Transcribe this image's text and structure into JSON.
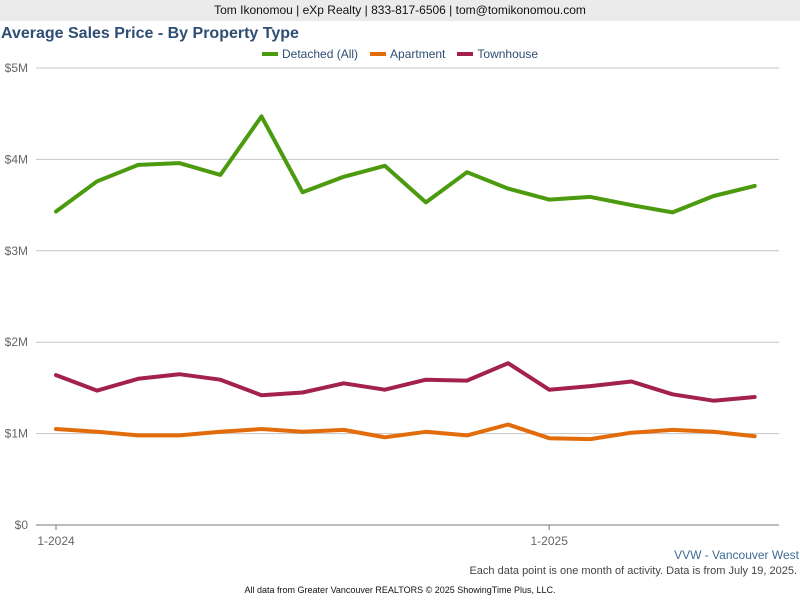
{
  "header": {
    "agent_name": "Tom Ikonomou",
    "brokerage": "eXp Realty",
    "phone": "833-817-6506",
    "email": "tom@tomikonomou.com",
    "separator": " | "
  },
  "footer": {
    "region": "VVW - Vancouver West",
    "note": "Each data point is one month of activity. Data is from July 19, 2025.",
    "source": "All data from Greater Vancouver REALTORS © 2025 ShowingTime Plus, LLC."
  },
  "chart_data": {
    "type": "line",
    "title": "Average Sales Price - By Property Type",
    "xlabel": "",
    "ylabel": "",
    "x": [
      "2024-01",
      "2024-02",
      "2024-03",
      "2024-04",
      "2024-05",
      "2024-06",
      "2024-07",
      "2024-08",
      "2024-09",
      "2024-10",
      "2024-11",
      "2024-12",
      "2025-01",
      "2025-02",
      "2025-03",
      "2025-04",
      "2025-05",
      "2025-06"
    ],
    "x_tick_labels": [
      {
        "x": "2024-01",
        "label": "1-2024"
      },
      {
        "x": "2025-01",
        "label": "1-2025"
      }
    ],
    "ylim": [
      0,
      5000000
    ],
    "y_ticks": [
      {
        "value": 0,
        "label": "$0"
      },
      {
        "value": 1000000,
        "label": "$1M"
      },
      {
        "value": 2000000,
        "label": "$2M"
      },
      {
        "value": 3000000,
        "label": "$3M"
      },
      {
        "value": 4000000,
        "label": "$4M"
      },
      {
        "value": 5000000,
        "label": "$5M"
      }
    ],
    "grid": true,
    "legend_position": "top",
    "series": [
      {
        "name": "Detached (All)",
        "color": "#4c9a0e",
        "values": [
          3430000,
          3760000,
          3940000,
          3960000,
          3830000,
          4470000,
          3640000,
          3810000,
          3930000,
          3530000,
          3860000,
          3680000,
          3560000,
          3590000,
          3500000,
          3420000,
          3600000,
          3710000
        ]
      },
      {
        "name": "Apartment",
        "color": "#e36c0a",
        "values": [
          1050000,
          1020000,
          980000,
          980000,
          1020000,
          1050000,
          1020000,
          1040000,
          960000,
          1020000,
          980000,
          1100000,
          950000,
          940000,
          1010000,
          1040000,
          1020000,
          970000
        ]
      },
      {
        "name": "Townhouse",
        "color": "#a3224d",
        "values": [
          1640000,
          1470000,
          1600000,
          1650000,
          1590000,
          1420000,
          1450000,
          1550000,
          1480000,
          1590000,
          1580000,
          1770000,
          1480000,
          1520000,
          1570000,
          1430000,
          1360000,
          1400000
        ]
      }
    ]
  }
}
